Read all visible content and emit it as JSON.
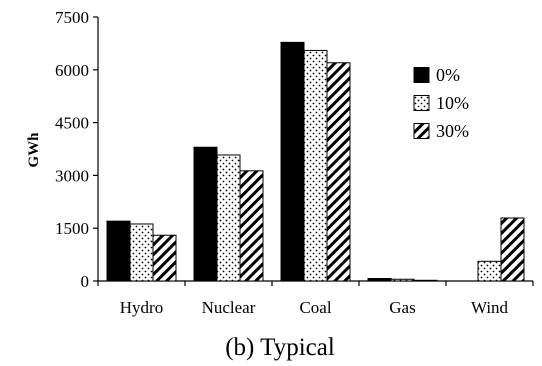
{
  "chart_data": {
    "type": "bar",
    "title": "(b) Typical",
    "xlabel": "",
    "ylabel": "GWh",
    "ylim": [
      0,
      7500
    ],
    "yticks": [
      0,
      1500,
      3000,
      4500,
      6000,
      7500
    ],
    "grid": false,
    "legend_position": "right",
    "categories": [
      "Hydro",
      "Nuclear",
      "Coal",
      "Gas",
      "Wind"
    ],
    "series": [
      {
        "name": "0%",
        "pattern": "solid",
        "color": "#000000",
        "values": [
          1700,
          3800,
          6780,
          70,
          0
        ]
      },
      {
        "name": "10%",
        "pattern": "dotted",
        "color": "#ffffff",
        "values": [
          1620,
          3580,
          6550,
          50,
          560
        ]
      },
      {
        "name": "30%",
        "pattern": "hatch",
        "color": "#ffffff",
        "values": [
          1300,
          3130,
          6200,
          20,
          1790
        ]
      }
    ]
  }
}
